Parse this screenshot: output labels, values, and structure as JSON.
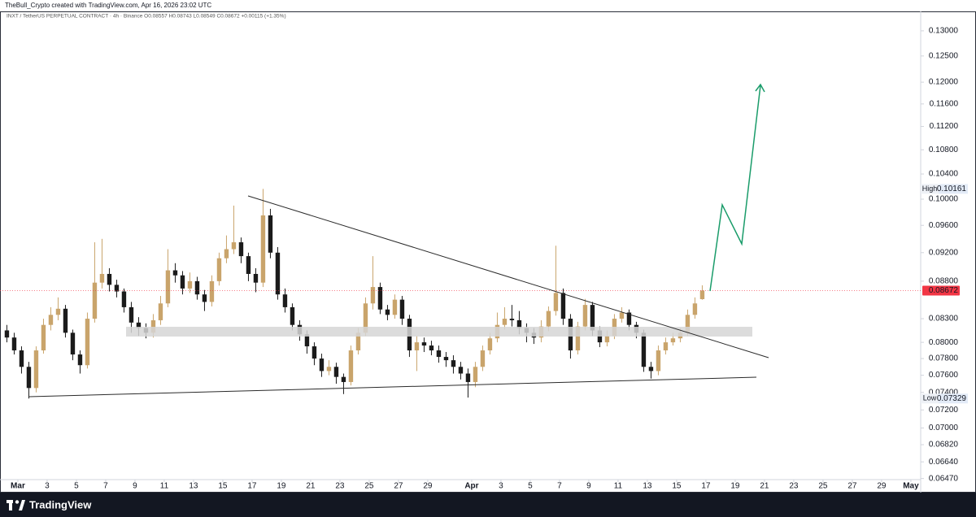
{
  "chart_data": {
    "type": "candlestick",
    "credit": "TheBull_Crypto created with TradingView.com, Apr 16, 2026 23:02 UTC",
    "legend_text": "INXT / TetherUS PERPETUAL CONTRACT · 4h · Binance   O0.08557  H0.08743  L0.08549  C0.08672  +0.00115 (+1.35%)",
    "brand": "TradingView",
    "log_scale": true,
    "grid": false,
    "up_color": "#c9a46b",
    "down_color": "#1b1b1b",
    "last_price": 0.08672,
    "last_price_color": "#f23645",
    "high": {
      "label": "High",
      "value": 0.10161
    },
    "low": {
      "label": "Low",
      "value": 0.07329
    },
    "xlim": [
      -1.22,
      61.56
    ],
    "ylim": [
      0.0641,
      0.134
    ],
    "yticks": [
      {
        "value": 0.13,
        "label": "0.13000"
      },
      {
        "value": 0.125,
        "label": "0.12500"
      },
      {
        "value": 0.12,
        "label": "0.12000"
      },
      {
        "value": 0.116,
        "label": "0.11600"
      },
      {
        "value": 0.112,
        "label": "0.11200"
      },
      {
        "value": 0.108,
        "label": "0.10800"
      },
      {
        "value": 0.104,
        "label": "0.10400"
      },
      {
        "value": 0.1,
        "label": "0.10000"
      },
      {
        "value": 0.096,
        "label": "0.09600"
      },
      {
        "value": 0.092,
        "label": "0.09200"
      },
      {
        "value": 0.088,
        "label": "0.08800"
      },
      {
        "value": 0.083,
        "label": "0.08300"
      },
      {
        "value": 0.08,
        "label": "0.08000"
      },
      {
        "value": 0.078,
        "label": "0.07800"
      },
      {
        "value": 0.076,
        "label": "0.07600"
      },
      {
        "value": 0.074,
        "label": "0.07400"
      },
      {
        "value": 0.072,
        "label": "0.07200"
      },
      {
        "value": 0.07,
        "label": "0.07000"
      },
      {
        "value": 0.0682,
        "label": "0.06820"
      },
      {
        "value": 0.0664,
        "label": "0.06640"
      },
      {
        "value": 0.0647,
        "label": "0.06470"
      }
    ],
    "xticks": [
      {
        "value": 0,
        "label": "Mar"
      },
      {
        "value": 2,
        "label": "3"
      },
      {
        "value": 4,
        "label": "5"
      },
      {
        "value": 6,
        "label": "7"
      },
      {
        "value": 8,
        "label": "9"
      },
      {
        "value": 10,
        "label": "11"
      },
      {
        "value": 12,
        "label": "13"
      },
      {
        "value": 14,
        "label": "15"
      },
      {
        "value": 16,
        "label": "17"
      },
      {
        "value": 18,
        "label": "19"
      },
      {
        "value": 20,
        "label": "21"
      },
      {
        "value": 22,
        "label": "23"
      },
      {
        "value": 24,
        "label": "25"
      },
      {
        "value": 26,
        "label": "27"
      },
      {
        "value": 28,
        "label": "29"
      },
      {
        "value": 31,
        "label": "Apr"
      },
      {
        "value": 33,
        "label": "3"
      },
      {
        "value": 35,
        "label": "5"
      },
      {
        "value": 37,
        "label": "7"
      },
      {
        "value": 39,
        "label": "9"
      },
      {
        "value": 41,
        "label": "11"
      },
      {
        "value": 43,
        "label": "13"
      },
      {
        "value": 45,
        "label": "15"
      },
      {
        "value": 47,
        "label": "17"
      },
      {
        "value": 49,
        "label": "19"
      },
      {
        "value": 51,
        "label": "21"
      },
      {
        "value": 53,
        "label": "23"
      },
      {
        "value": 55,
        "label": "25"
      },
      {
        "value": 57,
        "label": "27"
      },
      {
        "value": 59,
        "label": "29"
      },
      {
        "value": 61,
        "label": "May"
      }
    ],
    "x": [
      -0.75,
      -0.25,
      0.25,
      0.75,
      1.25,
      1.75,
      2.25,
      2.75,
      3.25,
      3.75,
      4.25,
      4.75,
      5.25,
      5.75,
      6.25,
      6.75,
      7.25,
      7.75,
      8.25,
      8.75,
      9.25,
      9.75,
      10.25,
      10.75,
      11.25,
      11.75,
      12.25,
      12.75,
      13.25,
      13.75,
      14.25,
      14.75,
      15.25,
      15.75,
      16.25,
      16.75,
      17.25,
      17.75,
      18.25,
      18.75,
      19.25,
      19.75,
      20.25,
      20.75,
      21.25,
      21.75,
      22.25,
      22.75,
      23.25,
      23.75,
      24.25,
      24.75,
      25.25,
      25.75,
      26.25,
      26.75,
      27.25,
      27.75,
      28.25,
      28.75,
      29.25,
      29.75,
      30.25,
      30.75,
      31.25,
      31.75,
      32.25,
      32.75,
      33.25,
      33.75,
      34.25,
      34.75,
      35.25,
      35.75,
      36.25,
      36.75,
      37.25,
      37.75,
      38.25,
      38.75,
      39.25,
      39.75,
      40.25,
      40.75,
      41.25,
      41.75,
      42.25,
      42.75,
      43.25,
      43.75,
      44.25,
      44.75,
      45.25,
      45.75,
      46.25,
      46.75
    ],
    "candles": [
      [
        0.0815,
        0.0822,
        0.08,
        0.0806
      ],
      [
        0.0806,
        0.0812,
        0.0785,
        0.079
      ],
      [
        0.079,
        0.0795,
        0.0762,
        0.077
      ],
      [
        0.077,
        0.0776,
        0.07329,
        0.0745
      ],
      [
        0.0745,
        0.0795,
        0.074,
        0.079
      ],
      [
        0.079,
        0.083,
        0.0786,
        0.0822
      ],
      [
        0.0822,
        0.0845,
        0.0815,
        0.0835
      ],
      [
        0.0835,
        0.0858,
        0.0828,
        0.0843
      ],
      [
        0.0843,
        0.0848,
        0.0806,
        0.0812
      ],
      [
        0.0812,
        0.0816,
        0.0778,
        0.0785
      ],
      [
        0.0785,
        0.079,
        0.0762,
        0.0772
      ],
      [
        0.0772,
        0.0838,
        0.0768,
        0.083
      ],
      [
        0.083,
        0.0935,
        0.0825,
        0.0878
      ],
      [
        0.0878,
        0.094,
        0.087,
        0.089
      ],
      [
        0.089,
        0.0898,
        0.0866,
        0.0875
      ],
      [
        0.0875,
        0.0882,
        0.0858,
        0.0866
      ],
      [
        0.0866,
        0.087,
        0.0838,
        0.0845
      ],
      [
        0.0845,
        0.0852,
        0.0812,
        0.0825
      ],
      [
        0.0825,
        0.0832,
        0.0808,
        0.0818
      ],
      [
        0.0818,
        0.0824,
        0.0805,
        0.0812
      ],
      [
        0.0812,
        0.0836,
        0.0806,
        0.0828
      ],
      [
        0.0828,
        0.086,
        0.0822,
        0.085
      ],
      [
        0.085,
        0.0925,
        0.0845,
        0.0895
      ],
      [
        0.0895,
        0.0905,
        0.0878,
        0.0888
      ],
      [
        0.0888,
        0.0894,
        0.0862,
        0.087
      ],
      [
        0.087,
        0.0892,
        0.0864,
        0.088
      ],
      [
        0.088,
        0.0886,
        0.0855,
        0.0862
      ],
      [
        0.0862,
        0.0868,
        0.084,
        0.0852
      ],
      [
        0.0852,
        0.0888,
        0.0846,
        0.088
      ],
      [
        0.088,
        0.092,
        0.0874,
        0.0912
      ],
      [
        0.0912,
        0.0945,
        0.0905,
        0.0925
      ],
      [
        0.0925,
        0.099,
        0.0918,
        0.0935
      ],
      [
        0.0935,
        0.0942,
        0.0905,
        0.0915
      ],
      [
        0.0915,
        0.092,
        0.088,
        0.089
      ],
      [
        0.089,
        0.0898,
        0.0865,
        0.0878
      ],
      [
        0.0878,
        0.10161,
        0.0872,
        0.0975
      ],
      [
        0.0975,
        0.0985,
        0.0912,
        0.092
      ],
      [
        0.092,
        0.0928,
        0.0855,
        0.0862
      ],
      [
        0.0862,
        0.087,
        0.0838,
        0.0845
      ],
      [
        0.0845,
        0.085,
        0.0815,
        0.0822
      ],
      [
        0.0822,
        0.0828,
        0.0802,
        0.081
      ],
      [
        0.081,
        0.0815,
        0.0786,
        0.0795
      ],
      [
        0.0795,
        0.08,
        0.0772,
        0.078
      ],
      [
        0.078,
        0.0786,
        0.0758,
        0.0765
      ],
      [
        0.0765,
        0.0778,
        0.076,
        0.077
      ],
      [
        0.077,
        0.0775,
        0.075,
        0.0758
      ],
      [
        0.0758,
        0.0762,
        0.0738,
        0.0752
      ],
      [
        0.0752,
        0.0796,
        0.0748,
        0.079
      ],
      [
        0.079,
        0.0818,
        0.0785,
        0.0812
      ],
      [
        0.0812,
        0.0858,
        0.0808,
        0.085
      ],
      [
        0.085,
        0.0915,
        0.0842,
        0.0872
      ],
      [
        0.0872,
        0.0878,
        0.0836,
        0.0842
      ],
      [
        0.0842,
        0.0848,
        0.0828,
        0.0835
      ],
      [
        0.0835,
        0.0862,
        0.083,
        0.0855
      ],
      [
        0.0855,
        0.086,
        0.0822,
        0.083
      ],
      [
        0.083,
        0.0835,
        0.0782,
        0.079
      ],
      [
        0.079,
        0.0808,
        0.0765,
        0.08
      ],
      [
        0.08,
        0.0806,
        0.0788,
        0.0796
      ],
      [
        0.0796,
        0.0802,
        0.0784,
        0.079
      ],
      [
        0.079,
        0.0796,
        0.0775,
        0.0782
      ],
      [
        0.0782,
        0.0788,
        0.077,
        0.0778
      ],
      [
        0.0778,
        0.0784,
        0.0762,
        0.077
      ],
      [
        0.077,
        0.0776,
        0.0755,
        0.0762
      ],
      [
        0.0762,
        0.0768,
        0.0734,
        0.0752
      ],
      [
        0.0752,
        0.0776,
        0.0746,
        0.077
      ],
      [
        0.077,
        0.0796,
        0.0765,
        0.079
      ],
      [
        0.079,
        0.0812,
        0.0785,
        0.0805
      ],
      [
        0.0805,
        0.0838,
        0.08,
        0.0822
      ],
      [
        0.0822,
        0.0845,
        0.0816,
        0.083
      ],
      [
        0.083,
        0.0848,
        0.082,
        0.0828
      ],
      [
        0.0828,
        0.084,
        0.081,
        0.0818
      ],
      [
        0.0818,
        0.0824,
        0.08,
        0.0812
      ],
      [
        0.0812,
        0.0818,
        0.0798,
        0.0806
      ],
      [
        0.0806,
        0.0828,
        0.08,
        0.082
      ],
      [
        0.082,
        0.0846,
        0.0814,
        0.084
      ],
      [
        0.084,
        0.093,
        0.0834,
        0.0864
      ],
      [
        0.0864,
        0.087,
        0.0822,
        0.083
      ],
      [
        0.083,
        0.0836,
        0.078,
        0.079
      ],
      [
        0.079,
        0.0826,
        0.0785,
        0.082
      ],
      [
        0.082,
        0.0856,
        0.0815,
        0.0848
      ],
      [
        0.0848,
        0.0852,
        0.0808,
        0.0815
      ],
      [
        0.0815,
        0.082,
        0.0794,
        0.08
      ],
      [
        0.08,
        0.0815,
        0.0795,
        0.0808
      ],
      [
        0.0808,
        0.0836,
        0.0804,
        0.083
      ],
      [
        0.083,
        0.0845,
        0.0825,
        0.0838
      ],
      [
        0.0838,
        0.0842,
        0.0815,
        0.0822
      ],
      [
        0.0822,
        0.0826,
        0.0805,
        0.0812
      ],
      [
        0.0812,
        0.0816,
        0.0764,
        0.077
      ],
      [
        0.077,
        0.0776,
        0.0756,
        0.0765
      ],
      [
        0.0765,
        0.0796,
        0.076,
        0.079
      ],
      [
        0.079,
        0.0806,
        0.0785,
        0.08
      ],
      [
        0.08,
        0.0812,
        0.0796,
        0.0805
      ],
      [
        0.0805,
        0.0818,
        0.08,
        0.0812
      ],
      [
        0.0812,
        0.0842,
        0.0808,
        0.0835
      ],
      [
        0.0835,
        0.0858,
        0.083,
        0.085
      ],
      [
        0.08557,
        0.08743,
        0.08549,
        0.08672
      ]
    ]
  }
}
